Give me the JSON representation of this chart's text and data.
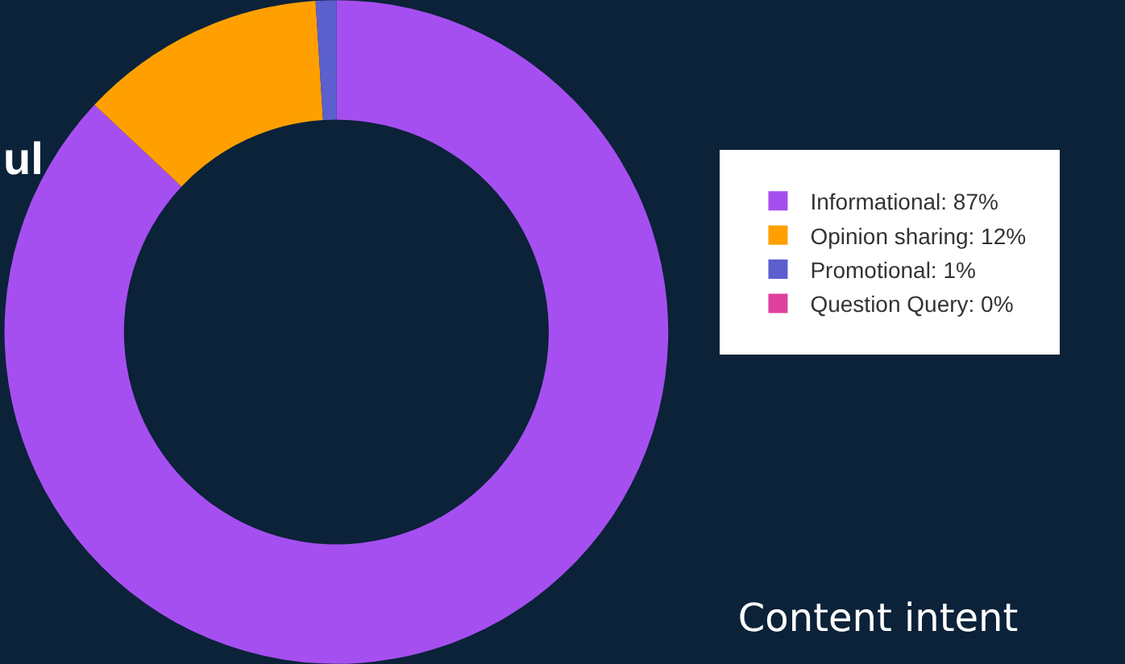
{
  "chart_data": {
    "type": "donut",
    "title": "Content intent",
    "annotations": [
      "ul"
    ],
    "categories": [
      "Informational: 87%",
      "Opinion sharing: 12%",
      "Promotional: 1%",
      "Question Query: 0%"
    ],
    "values": [
      87,
      12,
      1,
      0
    ],
    "colors": [
      "#a64ff0",
      "#ffa000",
      "#5c5fce",
      "#e040a0"
    ],
    "legend": "right"
  }
}
